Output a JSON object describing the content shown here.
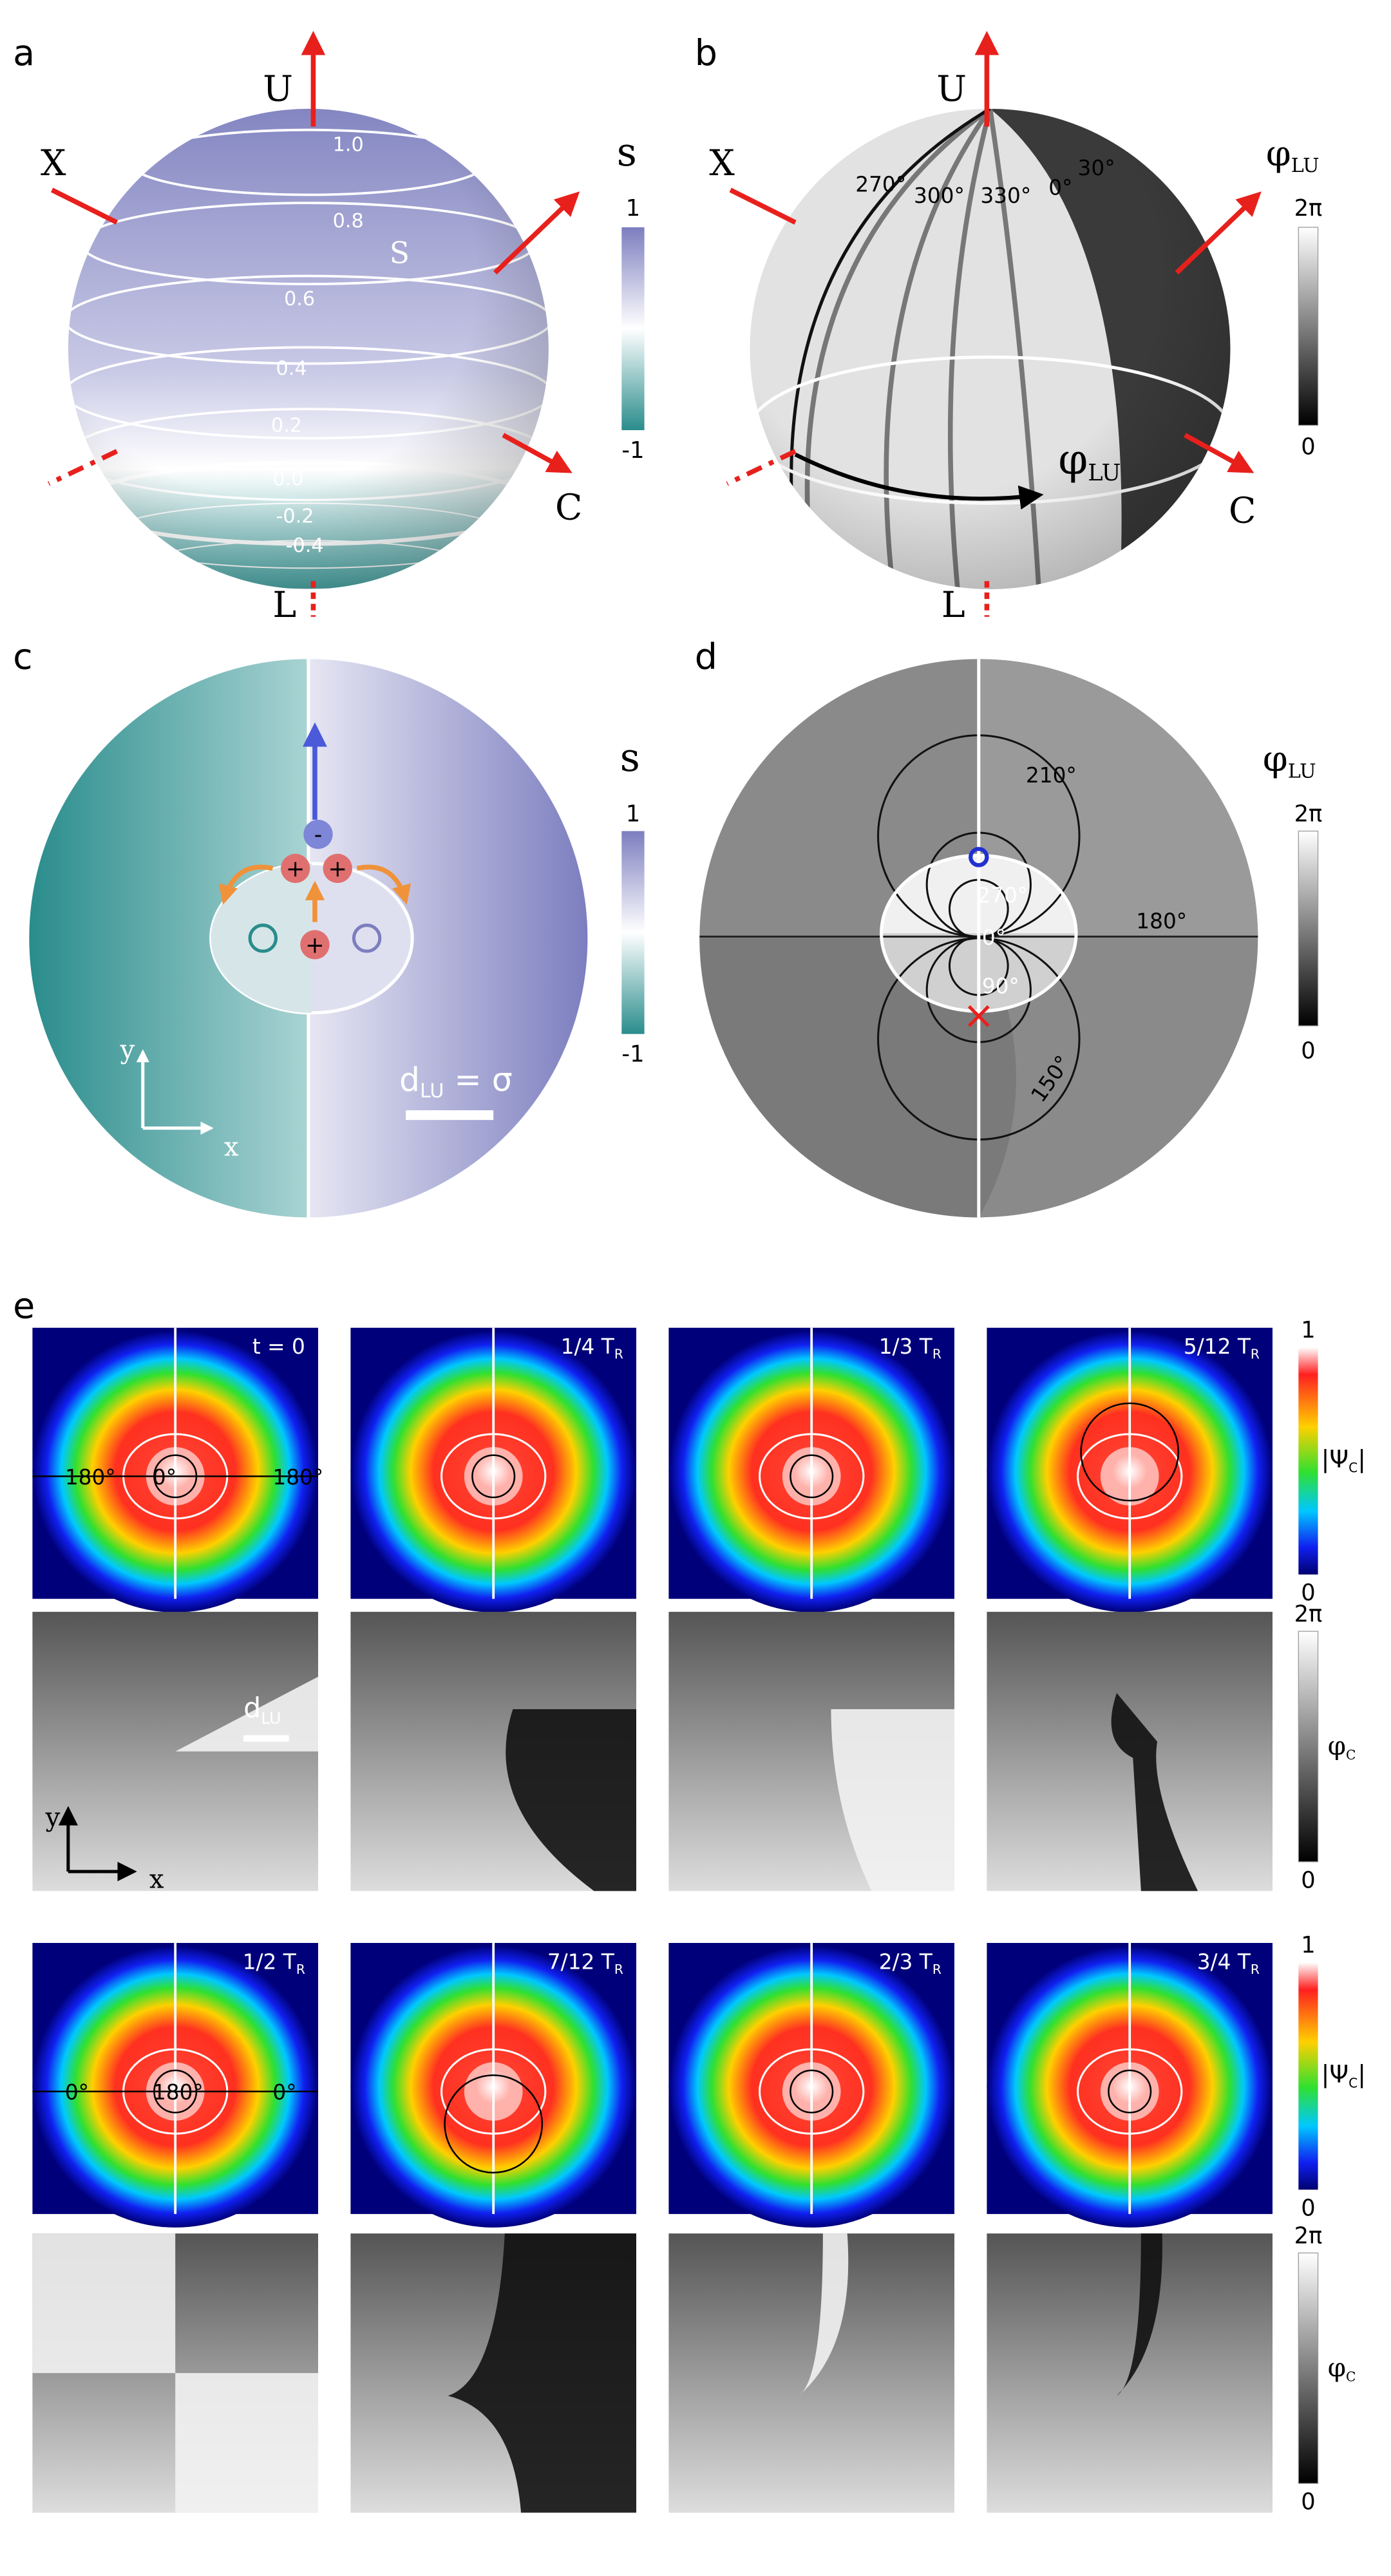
{
  "a": {
    "label": "a",
    "U": "U",
    "X": "X",
    "C": "C",
    "L": "L",
    "sphere_label": "S",
    "contours": [
      "1.0",
      "0.8",
      "0.6",
      "0.4",
      "0.2",
      "0.0",
      "-0.2",
      "-0.4"
    ],
    "colorbar": {
      "title": "s",
      "max": "1",
      "min": "-1"
    }
  },
  "b": {
    "label": "b",
    "U": "U",
    "X": "X",
    "C": "C",
    "L": "L",
    "angles": [
      "270°",
      "300°",
      "330°",
      "0°",
      "30°"
    ],
    "arc_label": "φ",
    "arc_sub": "LU",
    "colorbar": {
      "title": "φ",
      "title_sub": "LU",
      "max": "2π",
      "min": "0"
    }
  },
  "c": {
    "label": "c",
    "charges": [
      "-",
      "+",
      "+",
      "+"
    ],
    "x": "x",
    "y": "y",
    "scale": "d",
    "scale_sub": "LU",
    "scale_rest": " = σ",
    "colorbar": {
      "title": "s",
      "max": "1",
      "min": "-1"
    }
  },
  "d": {
    "label": "d",
    "angles": [
      "210°",
      "270°",
      "0°",
      "180°",
      "90°",
      "150°"
    ],
    "colorbar": {
      "title": "φ",
      "title_sub": "LU",
      "max": "2π",
      "min": "0"
    }
  },
  "e": {
    "label": "e",
    "tiles": [
      {
        "time": "t = 0",
        "angles": [
          "180°",
          "0°",
          "180°"
        ]
      },
      {
        "time": "1/4 T",
        "sub": "R"
      },
      {
        "time": "1/3 T",
        "sub": "R"
      },
      {
        "time": "5/12 T",
        "sub": "R"
      },
      {
        "time": "1/2 T",
        "sub": "R",
        "angles": [
          "0°",
          "180°",
          "0°"
        ]
      },
      {
        "time": "7/12 T",
        "sub": "R"
      },
      {
        "time": "2/3 T",
        "sub": "R"
      },
      {
        "time": "3/4 T",
        "sub": "R"
      }
    ],
    "scale": "d",
    "scale_sub": "LU",
    "x": "x",
    "y": "y",
    "amp_bar": {
      "pre": "|Ψ",
      "sub": "C",
      "post": "|",
      "max": "1",
      "min": "0"
    },
    "phase_bar": {
      "title": "φ",
      "sub": "C",
      "max": "2π",
      "min": "0"
    }
  }
}
